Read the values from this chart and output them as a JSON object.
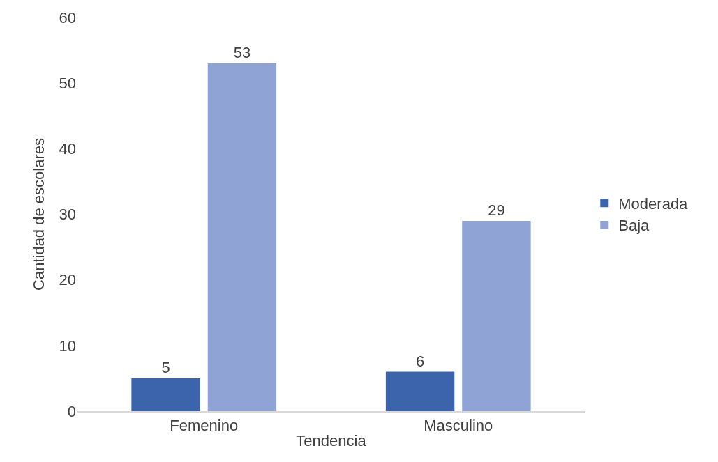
{
  "chart_data": {
    "type": "bar",
    "xlabel": "Tendencia",
    "ylabel": "Cantidad de escolares",
    "categories": [
      "Femenino",
      "Masculino"
    ],
    "series": [
      {
        "name": "Moderada",
        "color": "#3c64ac",
        "values": [
          5,
          6
        ]
      },
      {
        "name": "Baja",
        "color": "#8fa3d4",
        "values": [
          53,
          29
        ]
      }
    ],
    "ylim": [
      0,
      60
    ],
    "yticks": [
      0,
      10,
      20,
      30,
      40,
      50,
      60
    ],
    "grid": false,
    "legend": "right",
    "data_labels": true
  }
}
